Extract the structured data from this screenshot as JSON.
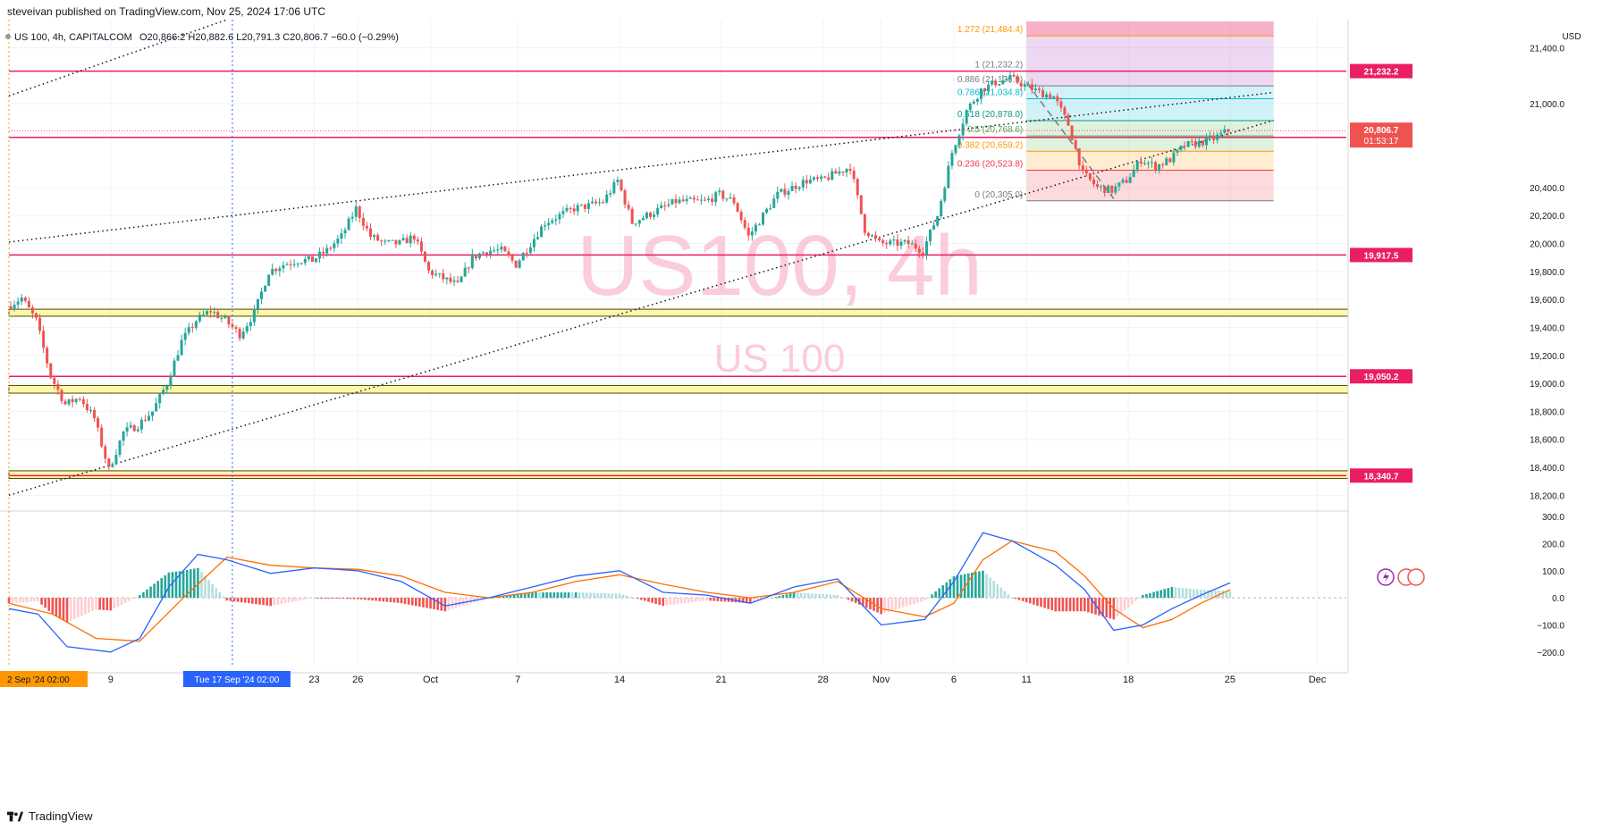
{
  "header": {
    "publish_text": "steveivan published on TradingView.com, Nov 25, 2024 17:06 UTC"
  },
  "legend": {
    "symbol": "US 100, 4h, CAPITALCOM",
    "ohlc": "O20,866.2  H20,882.6  L20,791.3  C20,806.7  −60.0 (−0.29%)"
  },
  "watermark": {
    "main": "US100, 4h",
    "sub": "US 100"
  },
  "footer": {
    "brand": "TradingView"
  },
  "price_axis": {
    "currency": "USD",
    "countdown": "01:53:17"
  },
  "colors": {
    "bull": "#26a69a",
    "bear": "#ef5350",
    "level_line": "#e91e63",
    "zone_fill": "#fff59d",
    "zone_border": "#4a4a00",
    "macd": "#2962ff",
    "signal": "#ff6d00",
    "crosshair_orange": "#ff9800",
    "crosshair_blue": "#2962ff",
    "watermark": "#f8bbd0"
  },
  "chart_data": [
    {
      "type": "candlestick",
      "symbol": "US 100",
      "timeframe": "4h",
      "title": "US100, 4h",
      "ylabel": "USD",
      "ylim": [
        18100,
        21600
      ],
      "y_ticks": [
        18200,
        18400,
        18600,
        18800,
        19000,
        19200,
        19400,
        19600,
        19800,
        20000,
        20200,
        20400,
        21000,
        21400
      ],
      "y_tick_labels": [
        "18,200.0",
        "18,400.0",
        "18,600.0",
        "18,800.0",
        "19,000.0",
        "19,200.0",
        "19,400.0",
        "19,600.0",
        "19,800.0",
        "20,000.0",
        "20,200.0",
        "20,400.0",
        "21,000.0",
        "21,400.0"
      ],
      "x_tick_labels": [
        {
          "label": "9",
          "date": "2024-09-09"
        },
        {
          "label": "23",
          "date": "2024-09-23"
        },
        {
          "label": "26",
          "date": "2024-09-26"
        },
        {
          "label": "Oct",
          "date": "2024-10-01"
        },
        {
          "label": "7",
          "date": "2024-10-07"
        },
        {
          "label": "14",
          "date": "2024-10-14"
        },
        {
          "label": "21",
          "date": "2024-10-21"
        },
        {
          "label": "28",
          "date": "2024-10-28"
        },
        {
          "label": "Nov",
          "date": "2024-11-01"
        },
        {
          "label": "6",
          "date": "2024-11-06"
        },
        {
          "label": "11",
          "date": "2024-11-11"
        },
        {
          "label": "18",
          "date": "2024-11-18"
        },
        {
          "label": "25",
          "date": "2024-11-25"
        },
        {
          "label": "Dec",
          "date": "2024-12-01"
        }
      ],
      "x_cursor_labels": [
        {
          "label": "2 Sep '24   02:00",
          "date": "2024-09-02"
        },
        {
          "label": "Tue 17 Sep '24   02:00",
          "date": "2024-09-17"
        }
      ],
      "price_path": [
        {
          "date": "2024-09-02",
          "close": 19550
        },
        {
          "date": "2024-09-03",
          "close": 19610
        },
        {
          "date": "2024-09-04",
          "close": 19450
        },
        {
          "date": "2024-09-05",
          "close": 19050
        },
        {
          "date": "2024-09-06",
          "close": 18850
        },
        {
          "date": "2024-09-07",
          "close": 18900
        },
        {
          "date": "2024-09-08",
          "close": 18750
        },
        {
          "date": "2024-09-09",
          "close": 18380
        },
        {
          "date": "2024-09-10",
          "close": 18650
        },
        {
          "date": "2024-09-11",
          "close": 18700
        },
        {
          "date": "2024-09-12",
          "close": 18800
        },
        {
          "date": "2024-09-13",
          "close": 19000
        },
        {
          "date": "2024-09-14",
          "close": 19300
        },
        {
          "date": "2024-09-15",
          "close": 19450
        },
        {
          "date": "2024-09-16",
          "close": 19520
        },
        {
          "date": "2024-09-17",
          "close": 19450
        },
        {
          "date": "2024-09-18",
          "close": 19350
        },
        {
          "date": "2024-09-19",
          "close": 19500
        },
        {
          "date": "2024-09-20",
          "close": 19800
        },
        {
          "date": "2024-09-21",
          "close": 19850
        },
        {
          "date": "2024-09-22",
          "close": 19880
        },
        {
          "date": "2024-09-23",
          "close": 19880
        },
        {
          "date": "2024-09-24",
          "close": 19950
        },
        {
          "date": "2024-09-25",
          "close": 20050
        },
        {
          "date": "2024-09-26",
          "close": 20250
        },
        {
          "date": "2024-09-27",
          "close": 20050
        },
        {
          "date": "2024-09-28",
          "close": 20000
        },
        {
          "date": "2024-09-29",
          "close": 20000
        },
        {
          "date": "2024-09-30",
          "close": 20050
        },
        {
          "date": "2024-10-01",
          "close": 19800
        },
        {
          "date": "2024-10-02",
          "close": 19750
        },
        {
          "date": "2024-10-03",
          "close": 19700
        },
        {
          "date": "2024-10-04",
          "close": 19900
        },
        {
          "date": "2024-10-05",
          "close": 19950
        },
        {
          "date": "2024-10-06",
          "close": 19950
        },
        {
          "date": "2024-10-07",
          "close": 19850
        },
        {
          "date": "2024-10-08",
          "close": 20000
        },
        {
          "date": "2024-10-09",
          "close": 20150
        },
        {
          "date": "2024-10-10",
          "close": 20200
        },
        {
          "date": "2024-10-11",
          "close": 20250
        },
        {
          "date": "2024-10-12",
          "close": 20270
        },
        {
          "date": "2024-10-13",
          "close": 20300
        },
        {
          "date": "2024-10-14",
          "close": 20450
        },
        {
          "date": "2024-10-15",
          "close": 20150
        },
        {
          "date": "2024-10-16",
          "close": 20200
        },
        {
          "date": "2024-10-17",
          "close": 20250
        },
        {
          "date": "2024-10-18",
          "close": 20300
        },
        {
          "date": "2024-10-19",
          "close": 20300
        },
        {
          "date": "2024-10-20",
          "close": 20300
        },
        {
          "date": "2024-10-21",
          "close": 20350
        },
        {
          "date": "2024-10-22",
          "close": 20300
        },
        {
          "date": "2024-10-23",
          "close": 20050
        },
        {
          "date": "2024-10-24",
          "close": 20200
        },
        {
          "date": "2024-10-25",
          "close": 20350
        },
        {
          "date": "2024-10-26",
          "close": 20400
        },
        {
          "date": "2024-10-27",
          "close": 20450
        },
        {
          "date": "2024-10-28",
          "close": 20450
        },
        {
          "date": "2024-10-29",
          "close": 20500
        },
        {
          "date": "2024-10-30",
          "close": 20550
        },
        {
          "date": "2024-10-31",
          "close": 20100
        },
        {
          "date": "2024-11-01",
          "close": 20000
        },
        {
          "date": "2024-11-02",
          "close": 20000
        },
        {
          "date": "2024-11-03",
          "close": 20000
        },
        {
          "date": "2024-11-04",
          "close": 19950
        },
        {
          "date": "2024-11-05",
          "close": 20200
        },
        {
          "date": "2024-11-06",
          "close": 20650
        },
        {
          "date": "2024-11-07",
          "close": 20950
        },
        {
          "date": "2024-11-08",
          "close": 21100
        },
        {
          "date": "2024-11-09",
          "close": 21150
        },
        {
          "date": "2024-11-10",
          "close": 21180
        },
        {
          "date": "2024-11-11",
          "close": 21130
        },
        {
          "date": "2024-11-12",
          "close": 21080
        },
        {
          "date": "2024-11-13",
          "close": 21050
        },
        {
          "date": "2024-11-14",
          "close": 20850
        },
        {
          "date": "2024-11-15",
          "close": 20500
        },
        {
          "date": "2024-11-16",
          "close": 20400
        },
        {
          "date": "2024-11-17",
          "close": 20380
        },
        {
          "date": "2024-11-18",
          "close": 20450
        },
        {
          "date": "2024-11-19",
          "close": 20600
        },
        {
          "date": "2024-11-20",
          "close": 20550
        },
        {
          "date": "2024-11-21",
          "close": 20600
        },
        {
          "date": "2024-11-22",
          "close": 20700
        },
        {
          "date": "2024-11-23",
          "close": 20720
        },
        {
          "date": "2024-11-24",
          "close": 20750
        },
        {
          "date": "2024-11-25",
          "close": 20807
        }
      ],
      "horizontal_levels": [
        {
          "price": 21232.2,
          "label": "21,232.2"
        },
        {
          "price": 20758.9,
          "label": "20,758.9"
        },
        {
          "price": 19917.5,
          "label": "19,917.5"
        },
        {
          "price": 19050.2,
          "label": "19,050.2"
        },
        {
          "price": 18340.7,
          "label": "18,340.7"
        }
      ],
      "current_price": {
        "price": 20806.7,
        "label": "20,806.7"
      },
      "zones": [
        {
          "from": 19480,
          "to": 19530
        },
        {
          "from": 18930,
          "to": 18985
        },
        {
          "from": 18320,
          "to": 18375
        }
      ],
      "fibonacci": {
        "start_date": "2024-11-11",
        "end_date": "2024-11-28",
        "levels": [
          {
            "ratio": "1.272",
            "price": 21484.4,
            "label": "1.272 (21,484.4)",
            "color": "#ff9800"
          },
          {
            "ratio": "1",
            "price": 21232.2,
            "label": "1 (21,232.2)",
            "color": "#787b86"
          },
          {
            "ratio": "0.886",
            "price": 21126.9,
            "label": "0.886 (21,126.9)",
            "color": "#787b86"
          },
          {
            "ratio": "0.786",
            "price": 21034.8,
            "label": "0.786 (21,034.8)",
            "color": "#00bcd4"
          },
          {
            "ratio": "0.618",
            "price": 20878.0,
            "label": "0.618 (20,878.0)",
            "color": "#089981"
          },
          {
            "ratio": "0.5",
            "price": 20768.6,
            "label": "0.5 (20,768.6)",
            "color": "#4caf50"
          },
          {
            "ratio": "0.382",
            "price": 20659.2,
            "label": "0.382 (20,659.2)",
            "color": "#ff9800"
          },
          {
            "ratio": "0.236",
            "price": 20523.8,
            "label": "0.236 (20,523.8)",
            "color": "#f23645"
          },
          {
            "ratio": "0",
            "price": 20305.0,
            "label": "0 (20,305.0)",
            "color": "#787b86"
          }
        ]
      },
      "trendlines": [
        {
          "style": "dotted",
          "from": {
            "date": "2024-09-02",
            "price": 18200
          },
          "to": {
            "date": "2024-11-28",
            "price": 20880
          }
        },
        {
          "style": "dotted",
          "from": {
            "date": "2024-09-02",
            "price": 20010
          },
          "to": {
            "date": "2024-11-28",
            "price": 21080
          }
        },
        {
          "style": "dotted",
          "from": {
            "date": "2024-09-02",
            "price": 21055
          },
          "to": {
            "date": "2024-09-17",
            "price": 21600
          }
        },
        {
          "style": "dashed",
          "from": {
            "date": "2024-11-11",
            "price": 21150
          },
          "to": {
            "date": "2024-11-17",
            "price": 20320
          }
        }
      ]
    },
    {
      "type": "line",
      "name": "MACD",
      "ylim": [
        -250,
        310
      ],
      "y_ticks": [
        -200,
        -100,
        0,
        100,
        200,
        300
      ],
      "y_tick_labels": [
        "−200.0",
        "−100.0",
        "0.0",
        "100.0",
        "200.0",
        "300.0"
      ],
      "series": [
        {
          "name": "MACD",
          "points": [
            {
              "date": "2024-09-02",
              "value": -40
            },
            {
              "date": "2024-09-04",
              "value": -60
            },
            {
              "date": "2024-09-06",
              "value": -180
            },
            {
              "date": "2024-09-09",
              "value": -200
            },
            {
              "date": "2024-09-11",
              "value": -150
            },
            {
              "date": "2024-09-13",
              "value": 40
            },
            {
              "date": "2024-09-15",
              "value": 160
            },
            {
              "date": "2024-09-17",
              "value": 140
            },
            {
              "date": "2024-09-20",
              "value": 90
            },
            {
              "date": "2024-09-23",
              "value": 110
            },
            {
              "date": "2024-09-26",
              "value": 100
            },
            {
              "date": "2024-09-29",
              "value": 60
            },
            {
              "date": "2024-10-02",
              "value": -30
            },
            {
              "date": "2024-10-05",
              "value": 0
            },
            {
              "date": "2024-10-08",
              "value": 40
            },
            {
              "date": "2024-10-11",
              "value": 80
            },
            {
              "date": "2024-10-14",
              "value": 100
            },
            {
              "date": "2024-10-17",
              "value": 20
            },
            {
              "date": "2024-10-20",
              "value": 10
            },
            {
              "date": "2024-10-23",
              "value": -20
            },
            {
              "date": "2024-10-26",
              "value": 40
            },
            {
              "date": "2024-10-29",
              "value": 70
            },
            {
              "date": "2024-11-01",
              "value": -100
            },
            {
              "date": "2024-11-04",
              "value": -80
            },
            {
              "date": "2024-11-06",
              "value": 60
            },
            {
              "date": "2024-11-08",
              "value": 240
            },
            {
              "date": "2024-11-10",
              "value": 210
            },
            {
              "date": "2024-11-13",
              "value": 120
            },
            {
              "date": "2024-11-15",
              "value": 30
            },
            {
              "date": "2024-11-17",
              "value": -120
            },
            {
              "date": "2024-11-19",
              "value": -100
            },
            {
              "date": "2024-11-21",
              "value": -40
            },
            {
              "date": "2024-11-23",
              "value": 10
            },
            {
              "date": "2024-11-25",
              "value": 55
            }
          ]
        },
        {
          "name": "Signal",
          "points": [
            {
              "date": "2024-09-02",
              "value": -20
            },
            {
              "date": "2024-09-05",
              "value": -60
            },
            {
              "date": "2024-09-08",
              "value": -150
            },
            {
              "date": "2024-09-11",
              "value": -160
            },
            {
              "date": "2024-09-14",
              "value": 0
            },
            {
              "date": "2024-09-17",
              "value": 150
            },
            {
              "date": "2024-09-20",
              "value": 120
            },
            {
              "date": "2024-09-23",
              "value": 110
            },
            {
              "date": "2024-09-26",
              "value": 105
            },
            {
              "date": "2024-09-29",
              "value": 80
            },
            {
              "date": "2024-10-02",
              "value": 20
            },
            {
              "date": "2024-10-05",
              "value": 0
            },
            {
              "date": "2024-10-08",
              "value": 20
            },
            {
              "date": "2024-10-11",
              "value": 60
            },
            {
              "date": "2024-10-14",
              "value": 85
            },
            {
              "date": "2024-10-17",
              "value": 50
            },
            {
              "date": "2024-10-20",
              "value": 20
            },
            {
              "date": "2024-10-23",
              "value": 0
            },
            {
              "date": "2024-10-26",
              "value": 20
            },
            {
              "date": "2024-10-29",
              "value": 60
            },
            {
              "date": "2024-11-01",
              "value": -40
            },
            {
              "date": "2024-11-04",
              "value": -70
            },
            {
              "date": "2024-11-06",
              "value": -20
            },
            {
              "date": "2024-11-08",
              "value": 140
            },
            {
              "date": "2024-11-10",
              "value": 210
            },
            {
              "date": "2024-11-13",
              "value": 170
            },
            {
              "date": "2024-11-15",
              "value": 80
            },
            {
              "date": "2024-11-17",
              "value": -40
            },
            {
              "date": "2024-11-19",
              "value": -110
            },
            {
              "date": "2024-11-21",
              "value": -80
            },
            {
              "date": "2024-11-23",
              "value": -20
            },
            {
              "date": "2024-11-25",
              "value": 30
            }
          ]
        }
      ]
    }
  ]
}
